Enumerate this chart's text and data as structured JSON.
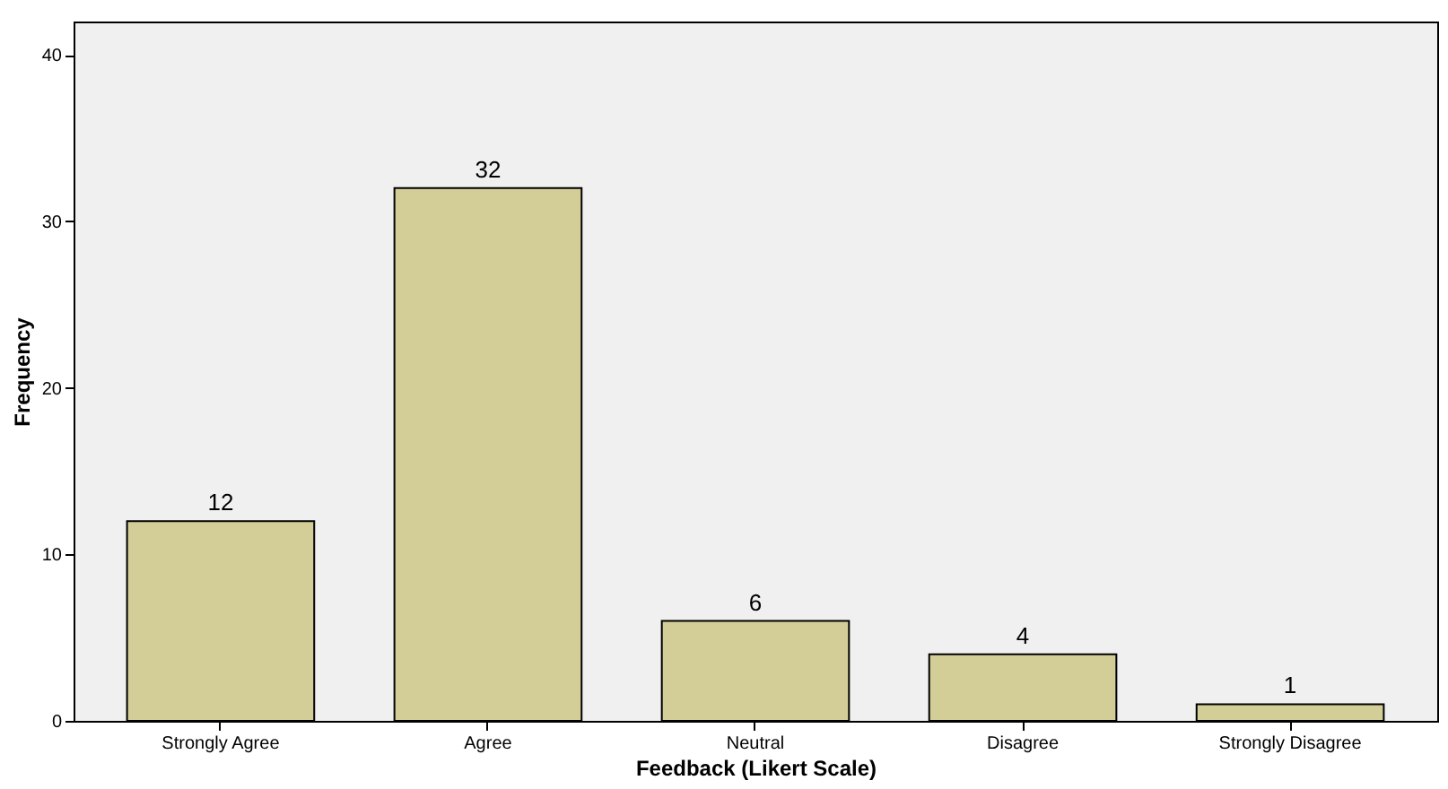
{
  "chart_data": {
    "type": "bar",
    "xlabel": "Feedback (Likert Scale)",
    "ylabel": "Frequency",
    "categories": [
      "Strongly Agree",
      "Agree",
      "Neutral",
      "Disagree",
      "Strongly Disagree"
    ],
    "values": [
      12,
      32,
      6,
      4,
      1
    ],
    "color": "#d3ce97",
    "ylim": [
      0,
      42
    ],
    "yticks": [
      0,
      10,
      20,
      30,
      40
    ],
    "grid": false,
    "data_labels": true
  }
}
